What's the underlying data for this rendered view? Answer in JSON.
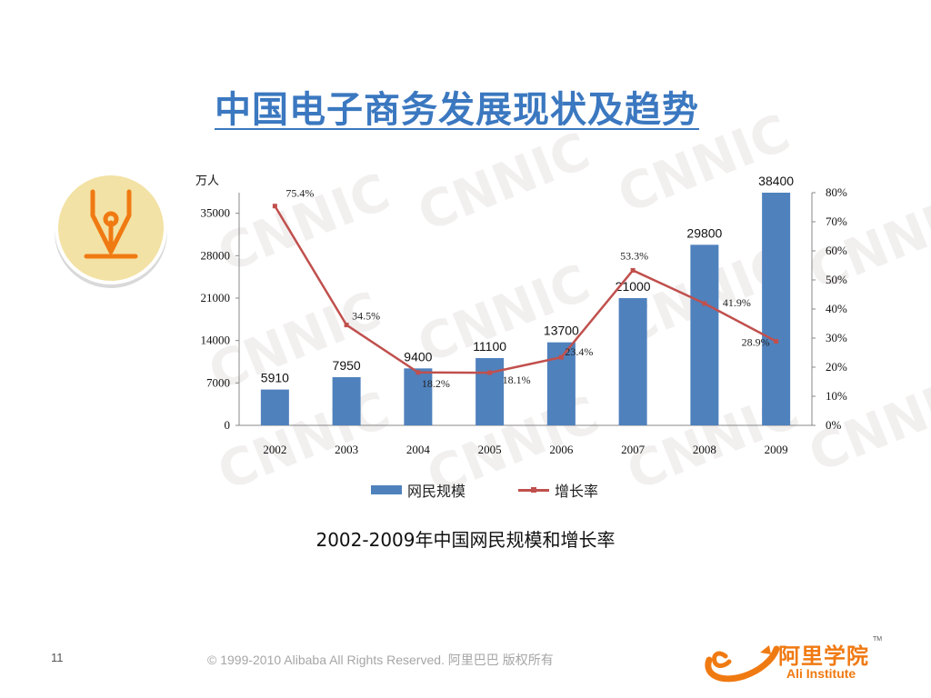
{
  "slide": {
    "title": "中国电子商务发展现状及趋势",
    "caption": "2002-2009年中国网民规模和增长率",
    "page_number": "11",
    "copyright": "© 1999-2010 Alibaba  All Rights Reserved. 阿里巴巴 版权所有",
    "logo_cn": "阿里学院",
    "logo_en": "Ali Institute",
    "logo_tm": "TM"
  },
  "watermark": "CNNIC",
  "colors": {
    "title": "#3b78c0",
    "bar": "#4f81bd",
    "line": "#c0504d",
    "logo": "#f07a12",
    "badge_fill": "#f3e2a5",
    "pen": "#f07a12"
  },
  "icons": {
    "badge": "fountain-pen-nib-icon"
  },
  "chart_data": {
    "type": "bar",
    "categories": [
      "2002",
      "2003",
      "2004",
      "2005",
      "2006",
      "2007",
      "2008",
      "2009"
    ],
    "y_unit_label": "万人",
    "ylim": [
      0,
      38400
    ],
    "y_ticks": [
      "0",
      "7000",
      "14000",
      "21000",
      "28000",
      "35000"
    ],
    "y2lim": [
      0,
      80
    ],
    "y2_ticks": [
      "0%",
      "10%",
      "20%",
      "30%",
      "40%",
      "50%",
      "60%",
      "70%",
      "80%"
    ],
    "legend_position": "bottom",
    "grid": false,
    "series": [
      {
        "name": "网民规模",
        "type": "bar",
        "axis": "left",
        "values": [
          5910,
          7950,
          9400,
          11100,
          13700,
          21000,
          29800,
          38400
        ],
        "labels": [
          "5910",
          "7950",
          "9400",
          "11100",
          "13700",
          "21000",
          "29800",
          "38400"
        ]
      },
      {
        "name": "增长率",
        "type": "line",
        "axis": "right",
        "values": [
          75.4,
          34.5,
          18.2,
          18.1,
          23.4,
          53.3,
          41.9,
          28.9
        ],
        "labels": [
          "75.4%",
          "34.5%",
          "18.2%",
          "18.1%",
          "23.4%",
          "53.3%",
          "41.9%",
          "28.9%"
        ]
      }
    ]
  }
}
